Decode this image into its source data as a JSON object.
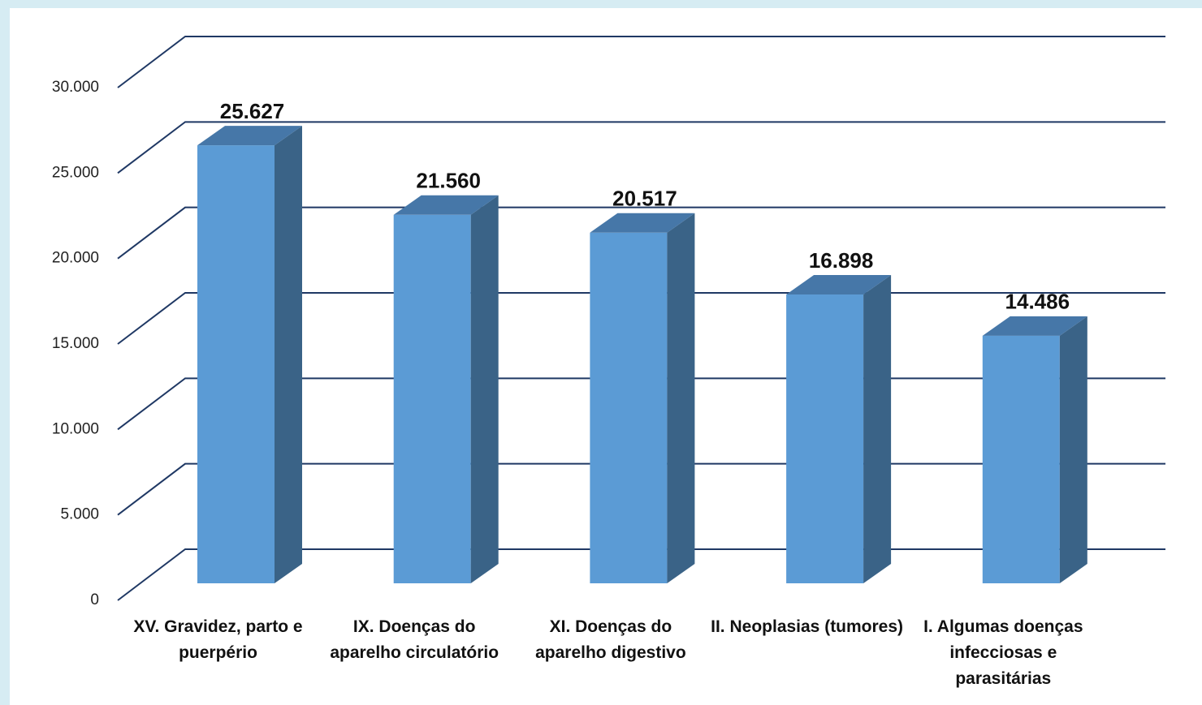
{
  "chart_data": {
    "type": "bar3d",
    "categories": [
      "XV.  Gravidez, parto e puerpério",
      "IX.  Doenças do aparelho circulatório",
      "XI.  Doenças do aparelho digestivo",
      "II.  Neoplasias (tumores)",
      "I.   Algumas doenças infecciosas e parasitárias"
    ],
    "values": [
      25627,
      21560,
      20517,
      16898,
      14486
    ],
    "value_labels": [
      "25.627",
      "21.560",
      "20.517",
      "16.898",
      "14.486"
    ],
    "color": "#5b9bd5",
    "ylim": [
      0,
      30000
    ],
    "yticks": [
      0,
      {
        "value": 5000,
        "label": "5.000"
      },
      {
        "value": 10000,
        "label": "10.000"
      },
      {
        "value": 15000,
        "label": "15.000"
      },
      {
        "value": 20000,
        "label": "20.000"
      },
      {
        "value": 25000,
        "label": "25.000"
      },
      {
        "value": 30000,
        "label": "30.000"
      }
    ],
    "grid": true
  }
}
